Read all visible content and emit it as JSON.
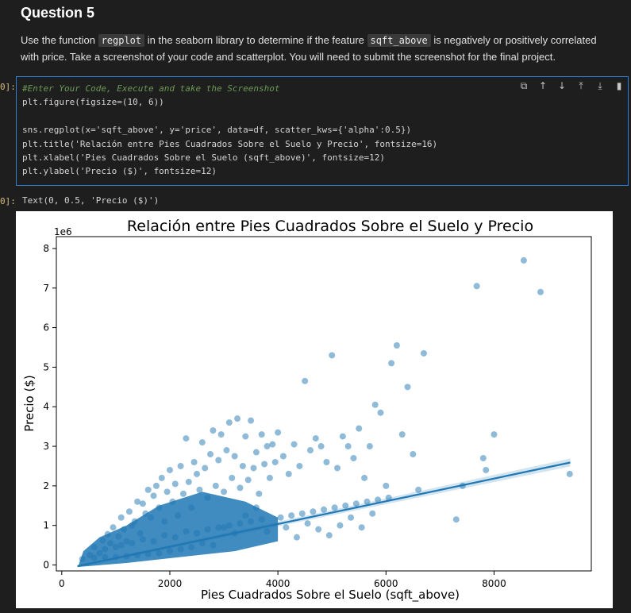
{
  "markdown": {
    "heading": "Question 5",
    "text_before_1": "Use the function ",
    "code_1": "regplot",
    "text_between": " in the seaborn library to determine if the feature ",
    "code_2": "sqft_above",
    "text_after": " is negatively or positively correlated with price. Take a screenshot of your code and scatterplot. You will need to submit the screenshot for the final project."
  },
  "code_cell": {
    "prompt": "0]:",
    "lines": [
      "#Enter Your Code, Execute and take the Screenshot",
      "plt.figure(figsize=(10, 6))",
      "",
      "sns.regplot(x='sqft_above', y='price', data=df, scatter_kws={'alpha':0.5})",
      "plt.title('Relación entre Pies Cuadrados Sobre el Suelo y Precio', fontsize=16)",
      "plt.xlabel('Pies Cuadrados Sobre el Suelo (sqft_above)', fontsize=12)",
      "plt.ylabel('Precio ($)', fontsize=12)"
    ],
    "toolbar": [
      "copy-icon",
      "move-up-icon",
      "move-down-icon",
      "insert-above-icon",
      "insert-below-icon",
      "delete-icon"
    ]
  },
  "output": {
    "prompt": "0]:",
    "text": "Text(0, 0.5, 'Precio ($)')"
  },
  "chart_data": {
    "type": "scatter",
    "title": "Relación entre Pies Cuadrados Sobre el Suelo y Precio",
    "xlabel": "Pies Cuadrados Sobre el Suelo (sqft_above)",
    "ylabel": "Precio ($)",
    "y_offset_label": "1e6",
    "xlim": [
      -100,
      9800
    ],
    "ylim": [
      -0.15,
      8.3
    ],
    "x_ticks": [
      0,
      2000,
      4000,
      6000,
      8000
    ],
    "x_tick_labels": [
      "0",
      "2000",
      "4000",
      "6000",
      "8000"
    ],
    "y_ticks": [
      0,
      1,
      2,
      3,
      4,
      5,
      6,
      7,
      8
    ],
    "y_tick_labels": [
      "0",
      "1",
      "2",
      "3",
      "4",
      "5",
      "6",
      "7",
      "8"
    ],
    "grid": false,
    "point_color": "#1f77b4",
    "regression_line": {
      "x": [
        290,
        9410
      ],
      "y": [
        -0.03,
        2.59
      ]
    },
    "points": {
      "x": [
        380,
        520,
        600,
        700,
        760,
        800,
        850,
        900,
        950,
        1000,
        1050,
        1100,
        1150,
        1200,
        1250,
        1300,
        1350,
        1400,
        1450,
        1500,
        1550,
        1600,
        1650,
        1700,
        1750,
        1800,
        1850,
        1900,
        1950,
        2000,
        2050,
        2100,
        2150,
        2200,
        2250,
        2300,
        2350,
        2400,
        2450,
        2500,
        2550,
        2600,
        2650,
        2700,
        2750,
        2800,
        2850,
        2900,
        2950,
        3000,
        3050,
        3100,
        3150,
        3200,
        3250,
        3300,
        3350,
        3400,
        3450,
        3500,
        3550,
        3600,
        3650,
        3700,
        3750,
        3800,
        3850,
        3900,
        3950,
        4000,
        4100,
        4200,
        4300,
        4400,
        4500,
        4600,
        4700,
        4800,
        4900,
        5000,
        5100,
        5200,
        5300,
        5400,
        5500,
        5600,
        5700,
        5800,
        5900,
        6000,
        6100,
        6200,
        6300,
        6400,
        6500,
        6600,
        6700,
        7300,
        7420,
        7680,
        7800,
        7850,
        8000,
        8550,
        8860,
        9400,
        1100,
        1300,
        1500,
        1700,
        1900,
        2100,
        2300,
        2500,
        2700,
        2900,
        3100,
        3300,
        3500,
        3700,
        4050,
        4250,
        4450,
        4650,
        4850,
        5050,
        5250,
        5450,
        5650,
        5850,
        6050,
        3000,
        3200,
        3400,
        3600,
        3800,
        2600,
        2800,
        2400,
        2200,
        2000,
        1800,
        1600,
        1400,
        1200,
        1000,
        800,
        600,
        4150,
        4350,
        4550,
        4750,
        4950,
        5150,
        5350,
        5550,
        5750
      ],
      "y": [
        0.15,
        0.25,
        0.45,
        0.3,
        0.62,
        0.4,
        0.78,
        0.55,
        0.95,
        0.45,
        0.72,
        1.2,
        0.9,
        0.6,
        1.35,
        1.0,
        1.1,
        1.6,
        0.8,
        1.55,
        1.3,
        1.9,
        1.2,
        1.75,
        2.0,
        1.45,
        2.2,
        1.1,
        1.85,
        2.4,
        1.6,
        2.05,
        1.25,
        2.5,
        1.8,
        3.2,
        2.1,
        1.45,
        2.6,
        2.3,
        1.9,
        3.1,
        2.45,
        1.7,
        2.8,
        3.4,
        2.0,
        2.65,
        3.3,
        1.85,
        2.9,
        3.6,
        2.2,
        2.75,
        3.7,
        1.95,
        2.5,
        3.25,
        2.15,
        3.65,
        2.45,
        2.85,
        1.8,
        3.3,
        2.55,
        3.0,
        2.2,
        3.05,
        2.6,
        3.35,
        2.75,
        2.3,
        3.05,
        2.5,
        4.65,
        2.9,
        3.2,
        3.0,
        2.6,
        5.3,
        2.45,
        3.25,
        3.0,
        2.7,
        3.45,
        2.2,
        3.0,
        4.05,
        3.85,
        2.0,
        5.1,
        5.55,
        3.3,
        4.5,
        2.8,
        1.9,
        5.35,
        1.15,
        2.0,
        7.05,
        2.7,
        2.4,
        3.3,
        7.7,
        6.9,
        2.3,
        0.5,
        0.55,
        0.65,
        0.6,
        0.75,
        0.7,
        0.85,
        0.8,
        0.9,
        0.95,
        1.0,
        1.05,
        1.1,
        1.15,
        1.2,
        1.25,
        1.3,
        1.35,
        1.4,
        1.45,
        1.5,
        1.55,
        1.6,
        1.65,
        1.7,
        0.95,
        0.8,
        1.25,
        1.45,
        0.85,
        0.55,
        0.5,
        0.45,
        0.4,
        0.35,
        0.3,
        0.28,
        0.25,
        0.22,
        0.2,
        0.2,
        0.18,
        0.95,
        0.7,
        1.05,
        0.9,
        0.75,
        1.0,
        1.2,
        0.95,
        1.3
      ]
    }
  }
}
